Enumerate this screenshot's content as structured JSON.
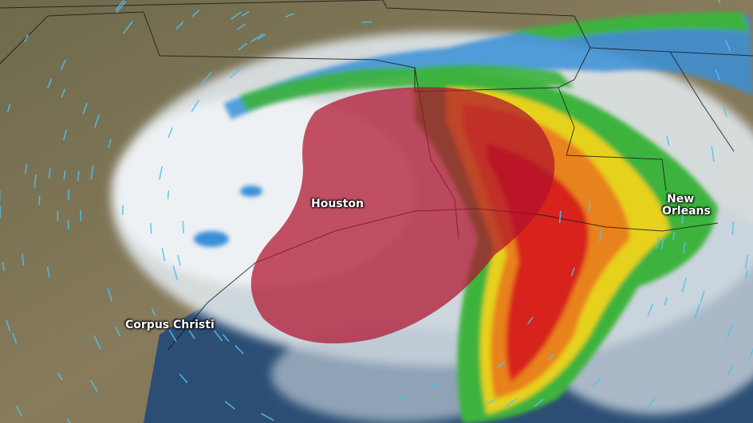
{
  "map": {
    "cities": [
      {
        "name": "Houston"
      },
      {
        "name": "New Orleans",
        "lines": [
          "New",
          "Orleans"
        ]
      },
      {
        "name": "Corpus Christi"
      }
    ],
    "colors": {
      "land": "#7b7453",
      "water": "#2c4e74",
      "cloud": "#e8ecef",
      "rain_light": "#3a8fd8",
      "rain_green": "#3cb33c",
      "rain_yellow": "#e6d21e",
      "rain_orange": "#e8821e",
      "rain_red": "#d8241e",
      "risk_area": "#b0102c",
      "wind_arrows": "#4fc3f0"
    }
  }
}
